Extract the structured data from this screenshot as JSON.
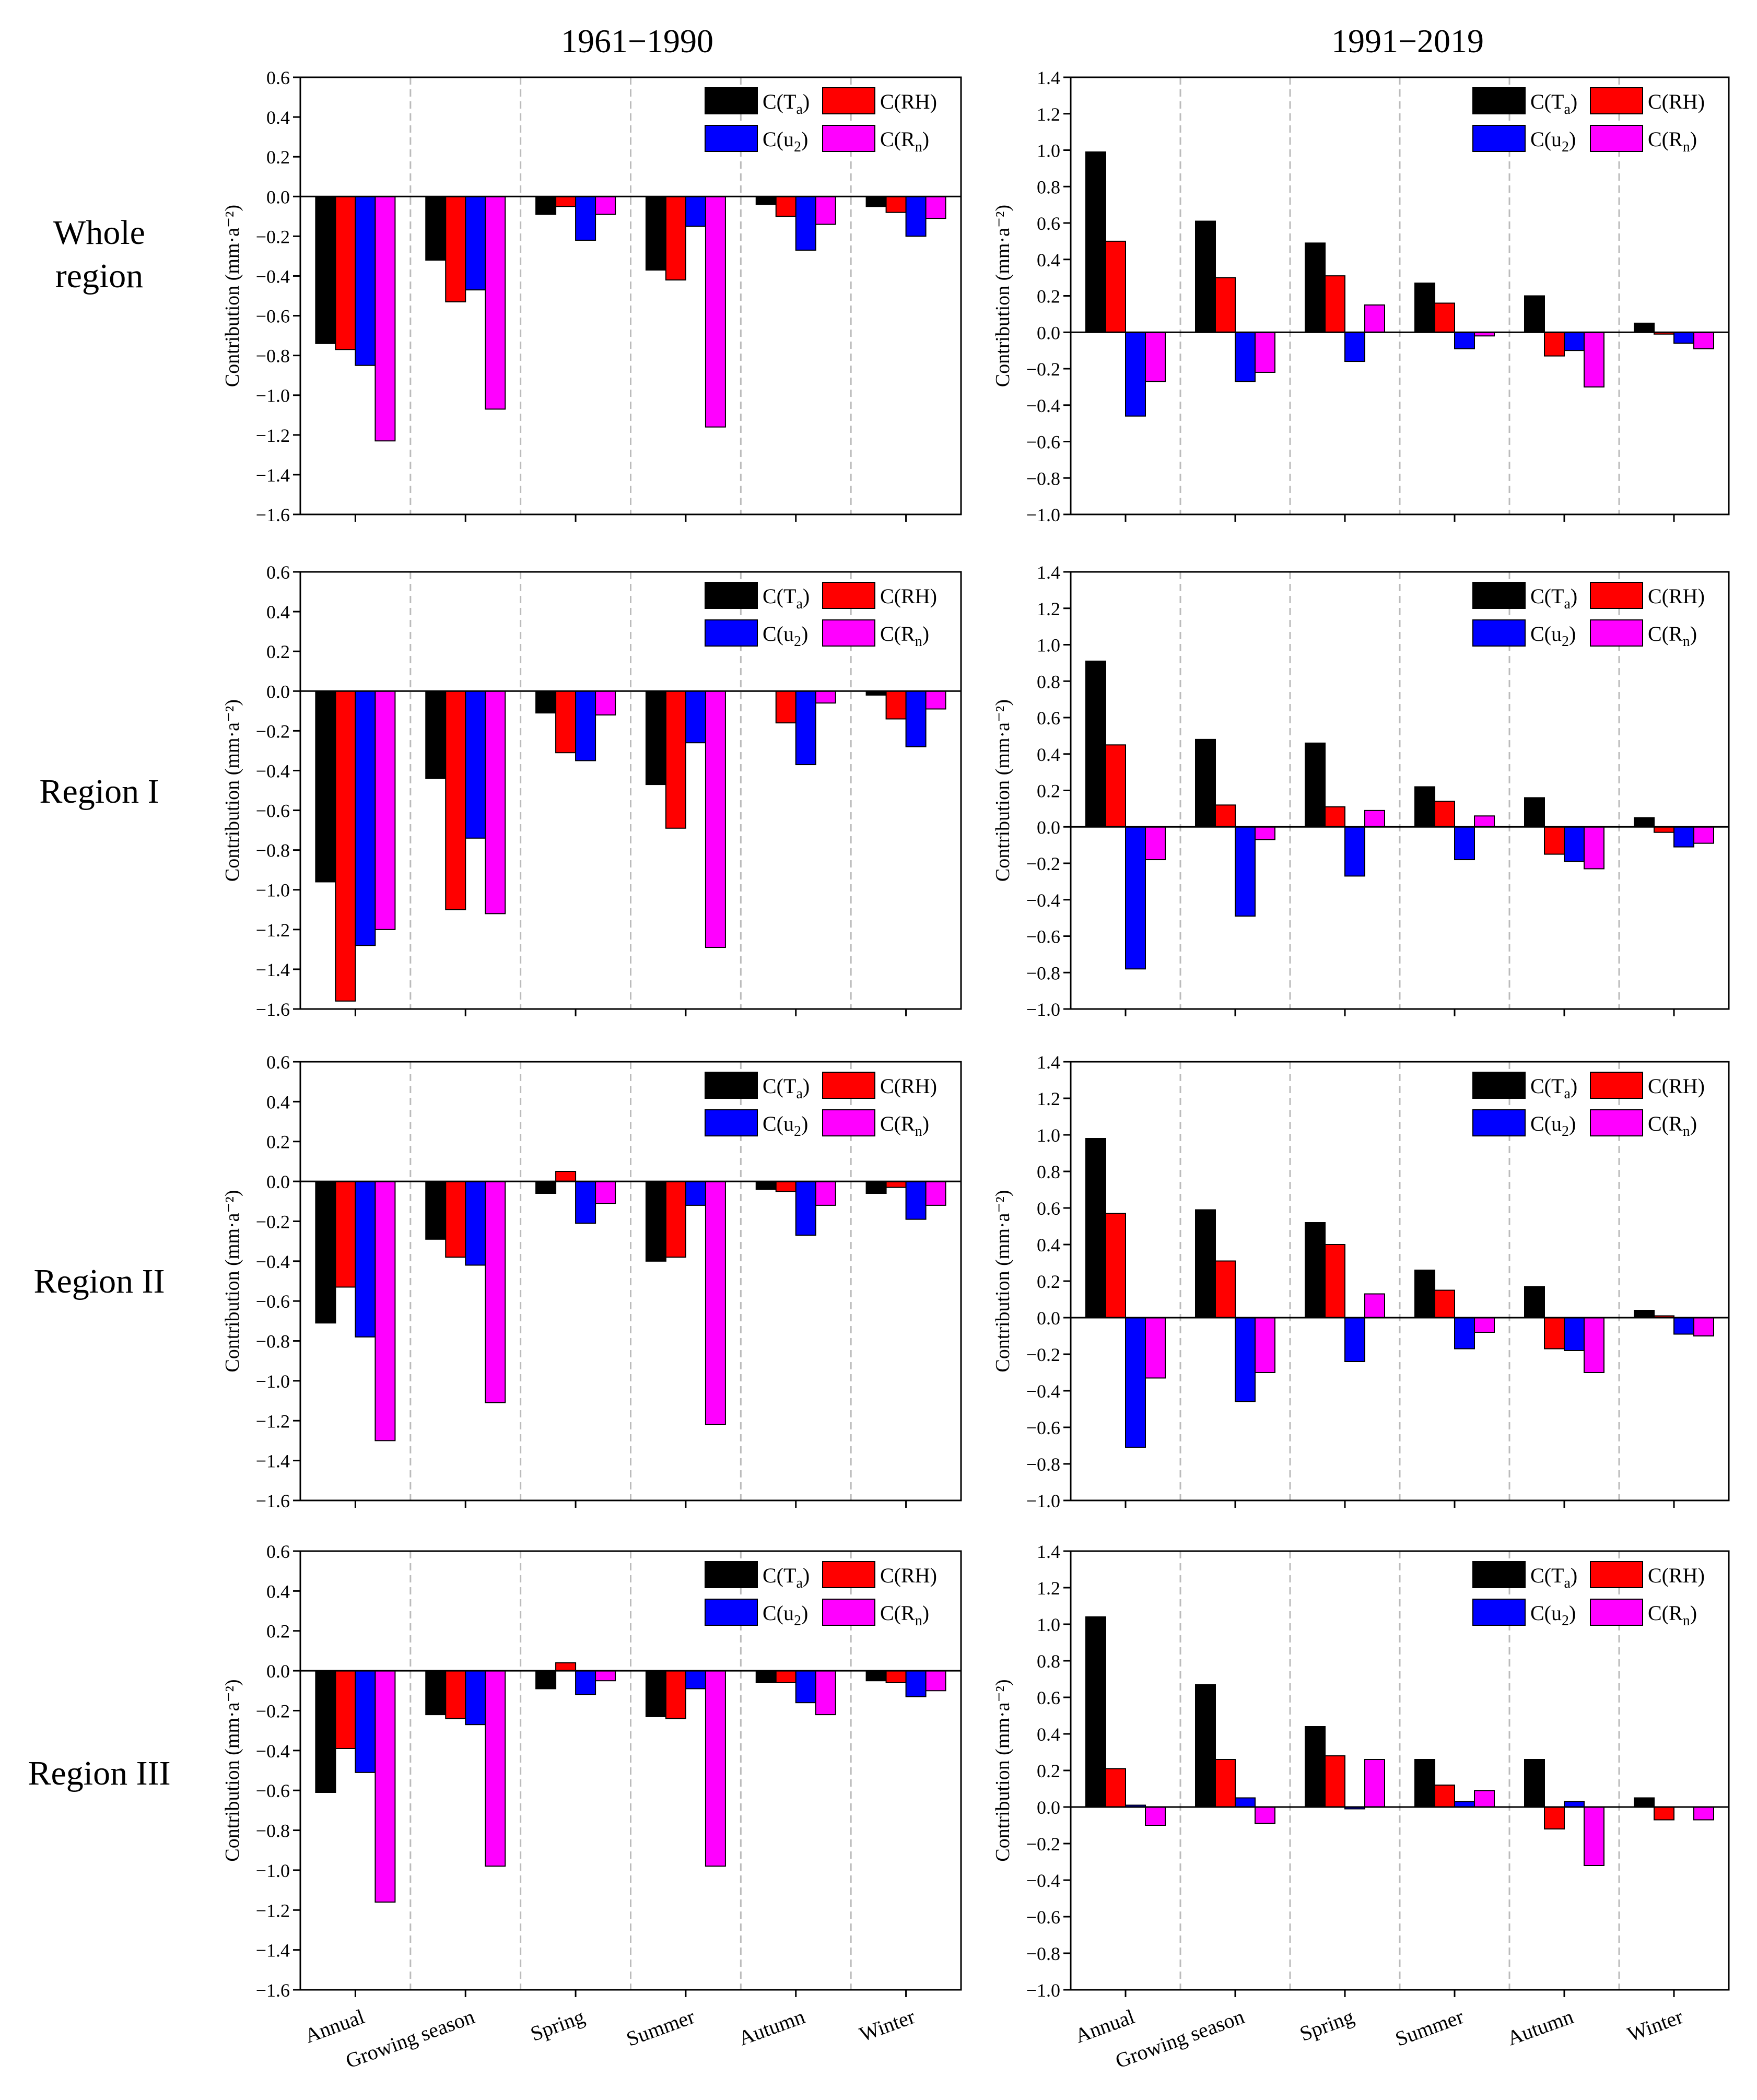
{
  "figure": {
    "period_titles": [
      "1961−1990",
      "1991−2019"
    ],
    "row_labels": [
      {
        "line1": "Whole",
        "line2": "region"
      },
      {
        "line1": "Region I",
        "line2": ""
      },
      {
        "line1": "Region II",
        "line2": ""
      },
      {
        "line1": "Region III",
        "line2": ""
      }
    ]
  },
  "colors": {
    "ta": "#000000",
    "rh": "#ff0000",
    "u2": "#0000ff",
    "rn": "#ff00ff",
    "separator": "#bbbbbb",
    "axis": "#000000"
  },
  "legend_labels": {
    "ta": {
      "base": "C(T",
      "sub": "a",
      "tail": ")"
    },
    "rh": {
      "base": "C(RH)",
      "sub": "",
      "tail": ""
    },
    "u2": {
      "base": "C(u",
      "sub": "2",
      "tail": ")"
    },
    "rn": {
      "base": "C(R",
      "sub": "n",
      "tail": ")"
    }
  },
  "chart_data": [
    {
      "type": "bar",
      "id": "whole-1961-1990",
      "row": "Whole region",
      "period": "1961−1990",
      "categories": [
        "Annual",
        "Growing season",
        "Spring",
        "Summer",
        "Autumn",
        "Winter"
      ],
      "ylabel": "Contribution (mm·a⁻²)",
      "ylim": [
        -1.6,
        0.6
      ],
      "yticks": [
        "0.6",
        "0.4",
        "0.2",
        "0.0",
        "−0.2",
        "−0.4",
        "−0.6",
        "−0.8",
        "−1.0",
        "−1.2",
        "−1.4",
        "−1.6"
      ],
      "legend": "top-right",
      "series": [
        {
          "name": "C(Ta)",
          "key": "ta",
          "values": [
            -0.74,
            -0.32,
            -0.09,
            -0.37,
            -0.04,
            -0.05
          ]
        },
        {
          "name": "C(RH)",
          "key": "rh",
          "values": [
            -0.77,
            -0.53,
            -0.05,
            -0.42,
            -0.1,
            -0.08
          ]
        },
        {
          "name": "C(u2)",
          "key": "u2",
          "values": [
            -0.85,
            -0.47,
            -0.22,
            -0.15,
            -0.27,
            -0.2
          ]
        },
        {
          "name": "C(Rn)",
          "key": "rn",
          "values": [
            -1.23,
            -1.07,
            -0.09,
            -1.16,
            -0.14,
            -0.11
          ]
        }
      ]
    },
    {
      "type": "bar",
      "id": "whole-1991-2019",
      "row": "Whole region",
      "period": "1991−2019",
      "categories": [
        "Annual",
        "Growing season",
        "Spring",
        "Summer",
        "Autumn",
        "Winter"
      ],
      "ylabel": "Contribution (mm·a⁻²)",
      "ylim": [
        -1.0,
        1.4
      ],
      "yticks": [
        "1.4",
        "1.2",
        "1.0",
        "0.8",
        "0.6",
        "0.4",
        "0.2",
        "0.0",
        "−0.2",
        "−0.4",
        "−0.6",
        "−0.8",
        "−1.0"
      ],
      "legend": "top-right",
      "series": [
        {
          "name": "C(Ta)",
          "key": "ta",
          "values": [
            0.99,
            0.61,
            0.49,
            0.27,
            0.2,
            0.05
          ]
        },
        {
          "name": "C(RH)",
          "key": "rh",
          "values": [
            0.5,
            0.3,
            0.31,
            0.16,
            -0.13,
            -0.01
          ]
        },
        {
          "name": "C(u2)",
          "key": "u2",
          "values": [
            -0.46,
            -0.27,
            -0.16,
            -0.09,
            -0.1,
            -0.06
          ]
        },
        {
          "name": "C(Rn)",
          "key": "rn",
          "values": [
            -0.27,
            -0.22,
            0.15,
            -0.02,
            -0.3,
            -0.09
          ]
        }
      ]
    },
    {
      "type": "bar",
      "id": "r1-1961-1990",
      "row": "Region I",
      "period": "1961−1990",
      "categories": [
        "Annual",
        "Growing season",
        "Spring",
        "Summer",
        "Autumn",
        "Winter"
      ],
      "ylabel": "Contribution (mm·a⁻²)",
      "ylim": [
        -1.6,
        0.6
      ],
      "yticks": [
        "0.6",
        "0.4",
        "0.2",
        "0.0",
        "−0.2",
        "−0.4",
        "−0.6",
        "−0.8",
        "−1.0",
        "−1.2",
        "−1.4",
        "−1.6"
      ],
      "legend": "top-right",
      "series": [
        {
          "name": "C(Ta)",
          "key": "ta",
          "values": [
            -0.96,
            -0.44,
            -0.11,
            -0.47,
            0.0,
            -0.02
          ]
        },
        {
          "name": "C(RH)",
          "key": "rh",
          "values": [
            -1.56,
            -1.1,
            -0.31,
            -0.69,
            -0.16,
            -0.14
          ]
        },
        {
          "name": "C(u2)",
          "key": "u2",
          "values": [
            -1.28,
            -0.74,
            -0.35,
            -0.26,
            -0.37,
            -0.28
          ]
        },
        {
          "name": "C(Rn)",
          "key": "rn",
          "values": [
            -1.2,
            -1.12,
            -0.12,
            -1.29,
            -0.06,
            -0.09
          ]
        }
      ]
    },
    {
      "type": "bar",
      "id": "r1-1991-2019",
      "row": "Region I",
      "period": "1991−2019",
      "categories": [
        "Annual",
        "Growing season",
        "Spring",
        "Summer",
        "Autumn",
        "Winter"
      ],
      "ylabel": "Contribution (mm·a⁻²)",
      "ylim": [
        -1.0,
        1.4
      ],
      "yticks": [
        "1.4",
        "1.2",
        "1.0",
        "0.8",
        "0.6",
        "0.4",
        "0.2",
        "0.0",
        "−0.2",
        "−0.4",
        "−0.6",
        "−0.8",
        "−1.0"
      ],
      "legend": "top-right",
      "series": [
        {
          "name": "C(Ta)",
          "key": "ta",
          "values": [
            0.91,
            0.48,
            0.46,
            0.22,
            0.16,
            0.05
          ]
        },
        {
          "name": "C(RH)",
          "key": "rh",
          "values": [
            0.45,
            0.12,
            0.11,
            0.14,
            -0.15,
            -0.03
          ]
        },
        {
          "name": "C(u2)",
          "key": "u2",
          "values": [
            -0.78,
            -0.49,
            -0.27,
            -0.18,
            -0.19,
            -0.11
          ]
        },
        {
          "name": "C(Rn)",
          "key": "rn",
          "values": [
            -0.18,
            -0.07,
            0.09,
            0.06,
            -0.23,
            -0.09
          ]
        }
      ]
    },
    {
      "type": "bar",
      "id": "r2-1961-1990",
      "row": "Region II",
      "period": "1961−1990",
      "categories": [
        "Annual",
        "Growing season",
        "Spring",
        "Summer",
        "Autumn",
        "Winter"
      ],
      "ylabel": "Contribution (mm·a⁻²)",
      "ylim": [
        -1.6,
        0.6
      ],
      "yticks": [
        "0.6",
        "0.4",
        "0.2",
        "0.0",
        "−0.2",
        "−0.4",
        "−0.6",
        "−0.8",
        "−1.0",
        "−1.2",
        "−1.4",
        "−1.6"
      ],
      "legend": "top-right",
      "series": [
        {
          "name": "C(Ta)",
          "key": "ta",
          "values": [
            -0.71,
            -0.29,
            -0.06,
            -0.4,
            -0.04,
            -0.06
          ]
        },
        {
          "name": "C(RH)",
          "key": "rh",
          "values": [
            -0.53,
            -0.38,
            0.05,
            -0.38,
            -0.05,
            -0.03
          ]
        },
        {
          "name": "C(u2)",
          "key": "u2",
          "values": [
            -0.78,
            -0.42,
            -0.21,
            -0.12,
            -0.27,
            -0.19
          ]
        },
        {
          "name": "C(Rn)",
          "key": "rn",
          "values": [
            -1.3,
            -1.11,
            -0.11,
            -1.22,
            -0.12,
            -0.12
          ]
        }
      ]
    },
    {
      "type": "bar",
      "id": "r2-1991-2019",
      "row": "Region II",
      "period": "1991−2019",
      "categories": [
        "Annual",
        "Growing season",
        "Spring",
        "Summer",
        "Autumn",
        "Winter"
      ],
      "ylabel": "Contribution (mm·a⁻²)",
      "ylim": [
        -1.0,
        1.4
      ],
      "yticks": [
        "1.4",
        "1.2",
        "1.0",
        "0.8",
        "0.6",
        "0.4",
        "0.2",
        "0.0",
        "−0.2",
        "−0.4",
        "−0.6",
        "−0.8",
        "−1.0"
      ],
      "legend": "top-right",
      "series": [
        {
          "name": "C(Ta)",
          "key": "ta",
          "values": [
            0.98,
            0.59,
            0.52,
            0.26,
            0.17,
            0.04
          ]
        },
        {
          "name": "C(RH)",
          "key": "rh",
          "values": [
            0.57,
            0.31,
            0.4,
            0.15,
            -0.17,
            0.01
          ]
        },
        {
          "name": "C(u2)",
          "key": "u2",
          "values": [
            -0.71,
            -0.46,
            -0.24,
            -0.17,
            -0.18,
            -0.09
          ]
        },
        {
          "name": "C(Rn)",
          "key": "rn",
          "values": [
            -0.33,
            -0.3,
            0.13,
            -0.08,
            -0.3,
            -0.1
          ]
        }
      ]
    },
    {
      "type": "bar",
      "id": "r3-1961-1990",
      "row": "Region III",
      "period": "1961−1990",
      "categories": [
        "Annual",
        "Growing season",
        "Spring",
        "Summer",
        "Autumn",
        "Winter"
      ],
      "ylabel": "Contribution (mm·a⁻²)",
      "ylim": [
        -1.6,
        0.6
      ],
      "yticks": [
        "0.6",
        "0.4",
        "0.2",
        "0.0",
        "−0.2",
        "−0.4",
        "−0.6",
        "−0.8",
        "−1.0",
        "−1.2",
        "−1.4",
        "−1.6"
      ],
      "legend": "top-right",
      "series": [
        {
          "name": "C(Ta)",
          "key": "ta",
          "values": [
            -0.61,
            -0.22,
            -0.09,
            -0.23,
            -0.06,
            -0.05
          ]
        },
        {
          "name": "C(RH)",
          "key": "rh",
          "values": [
            -0.39,
            -0.24,
            0.04,
            -0.24,
            -0.06,
            -0.06
          ]
        },
        {
          "name": "C(u2)",
          "key": "u2",
          "values": [
            -0.51,
            -0.27,
            -0.12,
            -0.09,
            -0.16,
            -0.13
          ]
        },
        {
          "name": "C(Rn)",
          "key": "rn",
          "values": [
            -1.16,
            -0.98,
            -0.05,
            -0.98,
            -0.22,
            -0.1
          ]
        }
      ]
    },
    {
      "type": "bar",
      "id": "r3-1991-2019",
      "row": "Region III",
      "period": "1991−2019",
      "categories": [
        "Annual",
        "Growing season",
        "Spring",
        "Summer",
        "Autumn",
        "Winter"
      ],
      "ylabel": "Contribution (mm·a⁻²)",
      "ylim": [
        -1.0,
        1.4
      ],
      "yticks": [
        "1.4",
        "1.2",
        "1.0",
        "0.8",
        "0.6",
        "0.4",
        "0.2",
        "0.0",
        "−0.2",
        "−0.4",
        "−0.6",
        "−0.8",
        "−1.0"
      ],
      "legend": "top-right",
      "series": [
        {
          "name": "C(Ta)",
          "key": "ta",
          "values": [
            1.04,
            0.67,
            0.44,
            0.26,
            0.26,
            0.05
          ]
        },
        {
          "name": "C(RH)",
          "key": "rh",
          "values": [
            0.21,
            0.26,
            0.28,
            0.12,
            -0.12,
            -0.07
          ]
        },
        {
          "name": "C(u2)",
          "key": "u2",
          "values": [
            0.01,
            0.05,
            -0.01,
            0.03,
            0.03,
            0.0
          ]
        },
        {
          "name": "C(Rn)",
          "key": "rn",
          "values": [
            -0.1,
            -0.09,
            0.26,
            0.09,
            -0.32,
            -0.07
          ]
        }
      ]
    }
  ]
}
